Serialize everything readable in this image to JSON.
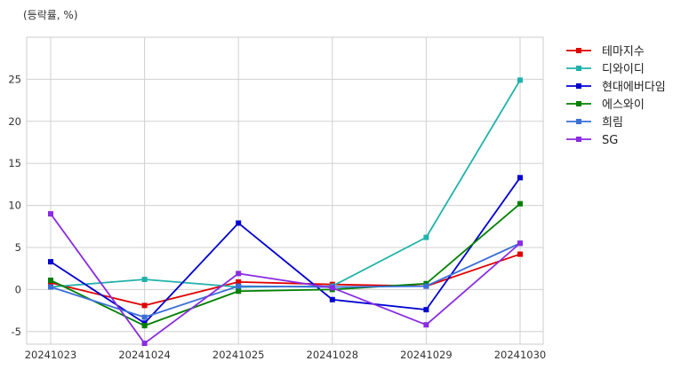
{
  "chart_data": {
    "type": "line",
    "unit_label": "(등락률, %)",
    "categories": [
      "20241023",
      "20241024",
      "20241025",
      "20241028",
      "20241029",
      "20241030"
    ],
    "ylim": [
      -6.5,
      30
    ],
    "yticks": [
      -5,
      0,
      5,
      10,
      15,
      20,
      25
    ],
    "grid": true,
    "legend_position": "right-outside-top",
    "series": [
      {
        "name": "테마지수",
        "color": "#e00000",
        "values": [
          0.8,
          -1.9,
          0.9,
          0.6,
          0.4,
          4.2
        ]
      },
      {
        "name": "디와이디",
        "color": "#20b2aa",
        "values": [
          0.3,
          1.2,
          0.3,
          0.4,
          6.2,
          24.9
        ]
      },
      {
        "name": "현대에버다임",
        "color": "#0000d0",
        "values": [
          3.3,
          -4.0,
          7.9,
          -1.2,
          -2.4,
          13.3
        ]
      },
      {
        "name": "에스와이",
        "color": "#008000",
        "values": [
          1.1,
          -4.3,
          -0.2,
          0.0,
          0.7,
          10.2
        ]
      },
      {
        "name": "희림",
        "color": "#3a6fd8",
        "values": [
          0.3,
          -3.3,
          0.4,
          0.3,
          0.4,
          5.5
        ]
      },
      {
        "name": "SG",
        "color": "#8a2be2",
        "values": [
          9.0,
          -6.4,
          1.9,
          0.2,
          -4.2,
          5.5
        ]
      }
    ]
  }
}
